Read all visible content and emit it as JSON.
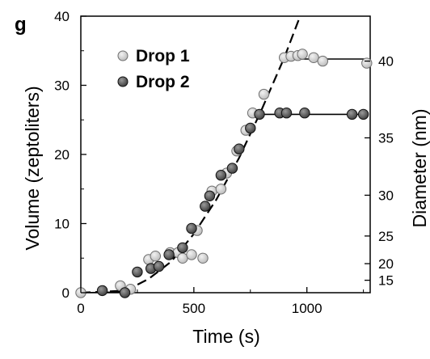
{
  "chart_data": {
    "type": "scatter",
    "panel_label": "g",
    "xlabel": "Time (s)",
    "ylabel": "Volume (zeptoliters)",
    "y2label": "Diameter (nm)",
    "xlim": [
      0,
      1280
    ],
    "ylim": [
      0,
      40
    ],
    "x_ticks": [
      0,
      500,
      1000
    ],
    "y_ticks": [
      0,
      10,
      20,
      30,
      40
    ],
    "y2_ticks": [
      {
        "label": "15",
        "volume": 1.8
      },
      {
        "label": "20",
        "volume": 4.2
      },
      {
        "label": "25",
        "volume": 8.2
      },
      {
        "label": "30",
        "volume": 14.1
      },
      {
        "label": "35",
        "volume": 22.4
      },
      {
        "label": "40",
        "volume": 33.5
      }
    ],
    "legend_placement": "top-left",
    "grid": false,
    "series": [
      {
        "name": "Drop 1",
        "color": "#b9b9b9",
        "x": [
          0,
          175,
          220,
          300,
          330,
          395,
          430,
          450,
          490,
          515,
          540,
          580,
          620,
          645,
          690,
          730,
          760,
          810,
          900,
          930,
          960,
          980,
          1030,
          1070,
          1265
        ],
        "y": [
          0,
          1,
          0.5,
          4.8,
          5.3,
          5.8,
          5.8,
          5,
          5.5,
          9,
          5,
          14.7,
          15,
          17.3,
          20.5,
          23.5,
          26,
          28.7,
          34,
          34.2,
          34.3,
          34.5,
          34,
          33.5,
          33.2
        ]
      },
      {
        "name": "Drop 2",
        "color": "#3a3a3a",
        "x": [
          95,
          195,
          250,
          310,
          345,
          390,
          450,
          490,
          550,
          570,
          620,
          670,
          700,
          750,
          790,
          880,
          910,
          990,
          1200,
          1250
        ],
        "y": [
          0.3,
          0,
          3,
          3.5,
          3.8,
          5.5,
          6.5,
          9.3,
          12.5,
          14,
          17,
          18,
          20.8,
          23.8,
          25.8,
          26,
          26,
          26,
          25.8,
          25.8
        ]
      }
    ],
    "fits": [
      {
        "style": "dashed",
        "x": [
          0,
          200,
          300,
          400,
          500,
          600,
          700,
          800,
          900,
          970
        ],
        "y": [
          0,
          0.3,
          2,
          4.5,
          8.5,
          13.5,
          19.5,
          26.5,
          34,
          40
        ]
      },
      {
        "style": "solid",
        "x": [
          0,
          200
        ],
        "y": [
          0,
          0.1
        ]
      },
      {
        "style": "solid",
        "x": [
          790,
          1250
        ],
        "y": [
          25.8,
          25.8
        ]
      },
      {
        "style": "solid",
        "x": [
          920,
          1270
        ],
        "y": [
          33.8,
          33.8
        ]
      }
    ]
  }
}
